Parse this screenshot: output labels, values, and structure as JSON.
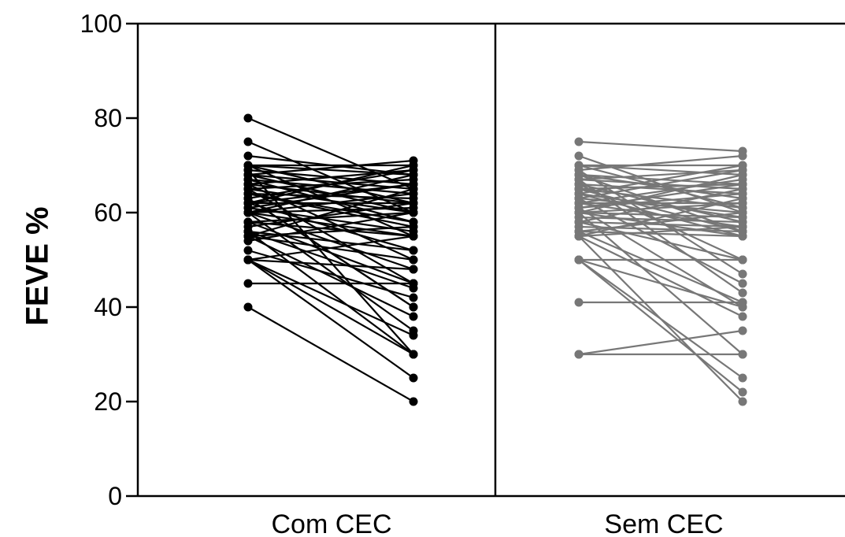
{
  "chart_data": {
    "type": "line",
    "ylabel": "FEVE %",
    "ylim": [
      0,
      100
    ],
    "yticks": [
      "0",
      "20",
      "40",
      "60",
      "80",
      "100"
    ],
    "groups": [
      {
        "name": "Com CEC",
        "color": "#000000",
        "pairs": [
          [
            80,
            65
          ],
          [
            75,
            60
          ],
          [
            72,
            68
          ],
          [
            70,
            70
          ],
          [
            70,
            62
          ],
          [
            70,
            55
          ],
          [
            69,
            66
          ],
          [
            68,
            60
          ],
          [
            68,
            71
          ],
          [
            67,
            58
          ],
          [
            67,
            64
          ],
          [
            66,
            50
          ],
          [
            66,
            69
          ],
          [
            65,
            60
          ],
          [
            65,
            45
          ],
          [
            65,
            67
          ],
          [
            64,
            57
          ],
          [
            64,
            63
          ],
          [
            63,
            40
          ],
          [
            63,
            69
          ],
          [
            62,
            52
          ],
          [
            62,
            62
          ],
          [
            62,
            70
          ],
          [
            61,
            56
          ],
          [
            61,
            66
          ],
          [
            60,
            48
          ],
          [
            60,
            61
          ],
          [
            60,
            35
          ],
          [
            60,
            68
          ],
          [
            60,
            55
          ],
          [
            58,
            60
          ],
          [
            58,
            45
          ],
          [
            57,
            62
          ],
          [
            56,
            44
          ],
          [
            56,
            30
          ],
          [
            55,
            50
          ],
          [
            55,
            65
          ],
          [
            55,
            57
          ],
          [
            55,
            38
          ],
          [
            54,
            60
          ],
          [
            52,
            42
          ],
          [
            50,
            48
          ],
          [
            50,
            55
          ],
          [
            50,
            34
          ],
          [
            50,
            25
          ],
          [
            50,
            30
          ],
          [
            45,
            45
          ],
          [
            40,
            20
          ],
          [
            70,
            68
          ],
          [
            68,
            65
          ],
          [
            66,
            62
          ],
          [
            64,
            58
          ],
          [
            62,
            66
          ],
          [
            60,
            64
          ],
          [
            58,
            55
          ],
          [
            56,
            52
          ],
          [
            69,
            30
          ],
          [
            63,
            40
          ]
        ]
      },
      {
        "name": "Sem CEC",
        "color": "#777777",
        "pairs": [
          [
            75,
            73
          ],
          [
            72,
            60
          ],
          [
            70,
            70
          ],
          [
            70,
            68
          ],
          [
            69,
            72
          ],
          [
            68,
            63
          ],
          [
            68,
            56
          ],
          [
            67,
            65
          ],
          [
            67,
            69
          ],
          [
            66,
            58
          ],
          [
            66,
            50
          ],
          [
            65,
            66
          ],
          [
            65,
            61
          ],
          [
            64,
            55
          ],
          [
            64,
            70
          ],
          [
            63,
            60
          ],
          [
            63,
            45
          ],
          [
            62,
            67
          ],
          [
            62,
            57
          ],
          [
            61,
            64
          ],
          [
            61,
            40
          ],
          [
            60,
            62
          ],
          [
            60,
            55
          ],
          [
            60,
            68
          ],
          [
            60,
            30
          ],
          [
            59,
            58
          ],
          [
            58,
            50
          ],
          [
            58,
            65
          ],
          [
            57,
            56
          ],
          [
            56,
            41
          ],
          [
            56,
            60
          ],
          [
            55,
            63
          ],
          [
            55,
            38
          ],
          [
            55,
            57
          ],
          [
            50,
            50
          ],
          [
            50,
            25
          ],
          [
            50,
            40
          ],
          [
            50,
            22
          ],
          [
            41,
            41
          ],
          [
            30,
            30
          ],
          [
            30,
            35
          ],
          [
            70,
            61
          ],
          [
            68,
            66
          ],
          [
            66,
            64
          ],
          [
            64,
            59
          ],
          [
            62,
            62
          ],
          [
            60,
            59
          ],
          [
            58,
            57
          ],
          [
            56,
            55
          ],
          [
            55,
            20
          ],
          [
            69,
            47
          ],
          [
            67,
            43
          ],
          [
            65,
            56
          ],
          [
            63,
            69
          ],
          [
            61,
            66
          ]
        ]
      }
    ],
    "grid": false,
    "legend": "none"
  }
}
